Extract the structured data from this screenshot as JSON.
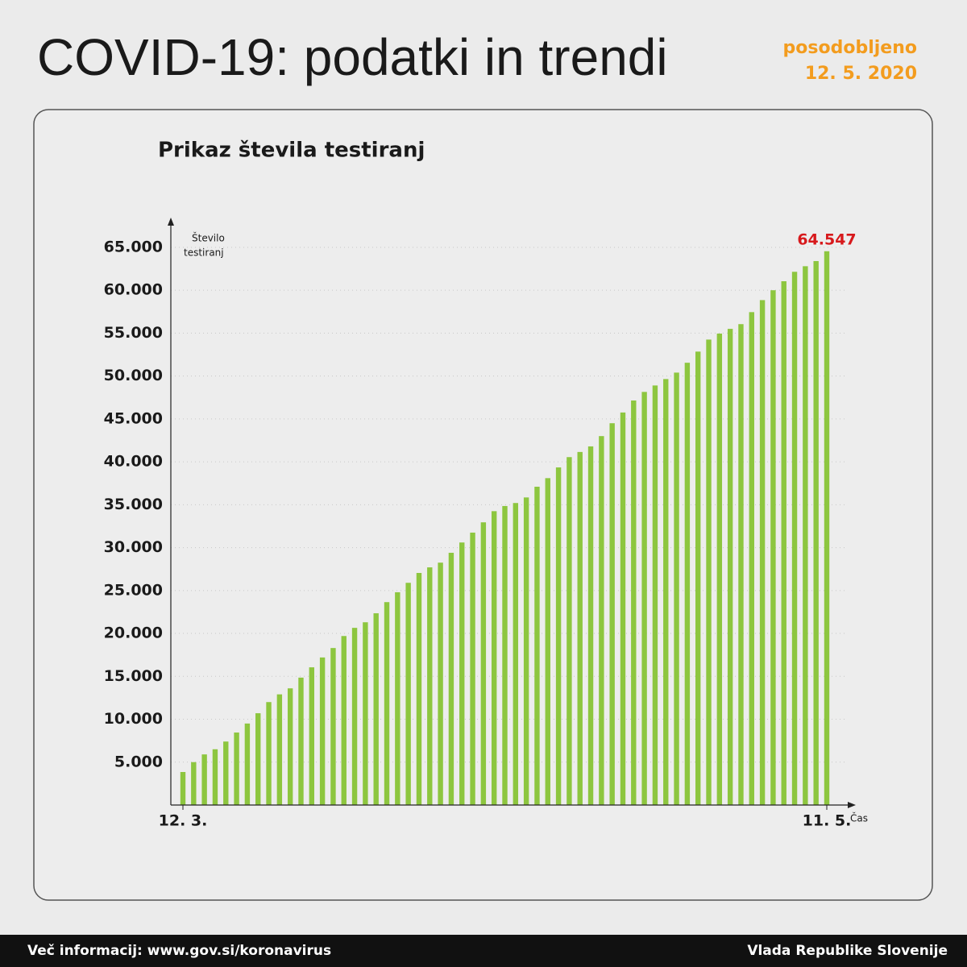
{
  "header": {
    "title": "COVID-19: podatki in trendi",
    "updated_label": "posodobljeno",
    "updated_date": "12. 5. 2020"
  },
  "chart_data": {
    "type": "bar",
    "title": "Prikaz števila testiranj",
    "y_label": [
      "Število",
      "testiranj"
    ],
    "x_label": "Čas",
    "categories": [
      "12. 3.",
      null,
      null,
      null,
      null,
      null,
      null,
      null,
      null,
      null,
      null,
      null,
      null,
      null,
      null,
      null,
      null,
      null,
      null,
      null,
      null,
      null,
      null,
      null,
      null,
      null,
      null,
      null,
      null,
      null,
      null,
      null,
      null,
      null,
      null,
      null,
      null,
      null,
      null,
      null,
      null,
      null,
      null,
      null,
      null,
      null,
      null,
      null,
      null,
      null,
      null,
      null,
      null,
      null,
      null,
      null,
      null,
      null,
      null,
      null,
      "11. 5."
    ],
    "values": [
      3850,
      5000,
      5900,
      6500,
      7400,
      8450,
      9500,
      10700,
      12000,
      12900,
      13600,
      14850,
      16050,
      17200,
      18300,
      19700,
      20650,
      21300,
      22350,
      23650,
      24800,
      25900,
      27050,
      27700,
      28250,
      29400,
      30600,
      31750,
      32950,
      34250,
      34850,
      35200,
      35850,
      37100,
      38100,
      39350,
      40550,
      41150,
      41800,
      43000,
      44500,
      45750,
      47150,
      48150,
      48900,
      49650,
      50400,
      51550,
      52850,
      54250,
      54950,
      55500,
      56050,
      57450,
      58850,
      60000,
      61050,
      62150,
      62800,
      63400,
      64547
    ],
    "value_labels": [
      null,
      null,
      null,
      null,
      null,
      null,
      null,
      null,
      null,
      null,
      null,
      null,
      null,
      null,
      null,
      null,
      null,
      null,
      null,
      null,
      null,
      null,
      null,
      null,
      null,
      null,
      null,
      null,
      null,
      null,
      null,
      null,
      null,
      null,
      null,
      null,
      null,
      null,
      null,
      null,
      null,
      null,
      null,
      null,
      null,
      null,
      null,
      null,
      null,
      null,
      null,
      null,
      null,
      null,
      null,
      null,
      null,
      null,
      null,
      null,
      "64.547"
    ],
    "color": "#8dc63f",
    "label_color": "#d7191c",
    "ylim": [
      0,
      68000
    ],
    "yticks": [
      {
        "value": 5000,
        "label": "5.000"
      },
      {
        "value": 10000,
        "label": "10.000"
      },
      {
        "value": 15000,
        "label": "15.000"
      },
      {
        "value": 20000,
        "label": "20.000"
      },
      {
        "value": 25000,
        "label": "25.000"
      },
      {
        "value": 30000,
        "label": "30.000"
      },
      {
        "value": 35000,
        "label": "35.000"
      },
      {
        "value": 40000,
        "label": "40.000"
      },
      {
        "value": 45000,
        "label": "45.000"
      },
      {
        "value": 50000,
        "label": "50.000"
      },
      {
        "value": 55000,
        "label": "55.000"
      },
      {
        "value": 60000,
        "label": "60.000"
      },
      {
        "value": 65000,
        "label": "65.000"
      }
    ],
    "grid": true
  },
  "footer": {
    "left": "Več informacij: www.gov.si/koronavirus",
    "right": "Vlada Republike Slovenije"
  }
}
